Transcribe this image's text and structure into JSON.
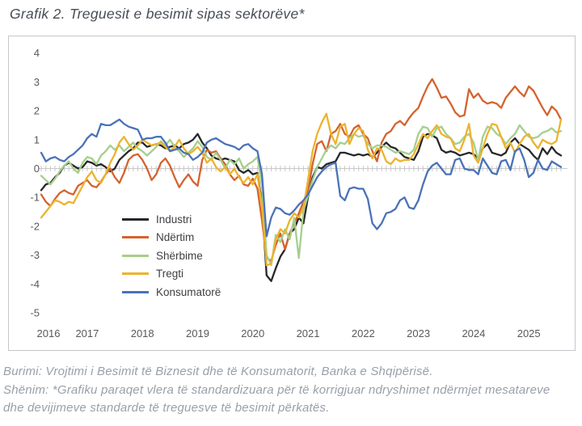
{
  "title": "Grafik 2. Treguesit e besimit sipas sektorëve*",
  "footer": {
    "source": "Burimi: Vrojtimi i Besimit të Biznesit dhe të Konsumatorit, Banka e Shqipërisë.",
    "note_line1": "Shënim: *Grafiku paraqet vlera të standardizuara për të korrigjuar ndryshimet ndërmjet mesatareve",
    "note_line2": "dhe devijimeve standarde të treguesve të besimit përkatës."
  },
  "chart_data": {
    "type": "line",
    "title": "Grafik 2. Treguesit e besimit sipas sektorëve*",
    "x_start": "2016-03",
    "frequency": "monthly",
    "x_tick_labels": [
      "2016",
      "2017",
      "2018",
      "2019",
      "2020",
      "2021",
      "2022",
      "2023",
      "2024",
      "2025"
    ],
    "y_ticks": [
      4,
      3,
      2,
      1,
      0,
      -1,
      -2,
      -3,
      -4,
      -5
    ],
    "ylim": [
      -5,
      4
    ],
    "grid": "none",
    "zero_axis": "horizontal line at 0 with monthly tick marks",
    "legend_position": "inside-lower-left",
    "axis_label_color": "#595959",
    "zero_line_color": "#c8c8c8",
    "series": [
      {
        "name": "Industri",
        "color": "#26272b",
        "values": [
          -0.75,
          -0.55,
          -0.5,
          -0.3,
          -0.15,
          0.1,
          0.2,
          0.1,
          0,
          0.05,
          0.25,
          0.2,
          0.1,
          0.15,
          0.05,
          -0.1,
          0,
          0.3,
          0.45,
          0.6,
          0.7,
          0.9,
          0.9,
          0.75,
          0.8,
          0.85,
          0.8,
          0.7,
          0.75,
          0.8,
          0.7,
          0.85,
          0.9,
          1.0,
          1.2,
          0.9,
          0.7,
          0.45,
          0.35,
          0.3,
          0.35,
          0.3,
          0.25,
          -0.05,
          -0.15,
          -0.05,
          -0.2,
          -0.15,
          -1.2,
          -3.7,
          -3.9,
          -3.45,
          -3.05,
          -2.8,
          -2.25,
          -2.1,
          -1.7,
          -1.9,
          -1.0,
          -0.3,
          0.05,
          0,
          0.15,
          0.2,
          0.25,
          0.55,
          0.55,
          0.5,
          0.45,
          0.5,
          0.45,
          0.5,
          0.4,
          0.55,
          0.75,
          0.9,
          0.75,
          0.7,
          0.55,
          0.4,
          0.35,
          0.3,
          0.6,
          1.1,
          1.2,
          1.15,
          1.05,
          0.65,
          0.55,
          0.6,
          0.55,
          0.45,
          0.5,
          0.55,
          0.5,
          0.35,
          0.7,
          0.85,
          0.55,
          0.5,
          0.45,
          0.55,
          0.9,
          1.05,
          0.85,
          0.75,
          0.65,
          0.45,
          0.3,
          0.7,
          0.5,
          0.75,
          0.55,
          0.45
        ]
      },
      {
        "name": "Ndërtim",
        "color": "#d4632f",
        "values": [
          -0.9,
          -1.15,
          -1.3,
          -1.05,
          -0.85,
          -0.75,
          -0.85,
          -0.9,
          -0.6,
          -0.5,
          -0.4,
          -0.6,
          -0.65,
          -0.45,
          -0.2,
          0,
          -0.3,
          -0.5,
          -0.15,
          0.3,
          0.45,
          0.5,
          0.3,
          0,
          -0.4,
          -0.2,
          0.2,
          0.35,
          0.1,
          -0.3,
          -0.65,
          -0.4,
          -0.2,
          -0.45,
          -0.6,
          0.3,
          0.65,
          0.55,
          0.6,
          0.35,
          0.15,
          -0.2,
          -0.4,
          -0.25,
          -0.55,
          -0.6,
          -0.35,
          -0.7,
          -1.8,
          -3.1,
          -3.2,
          -2.65,
          -2.25,
          -2.8,
          -2.25,
          -1.9,
          -1.55,
          -1.15,
          -0.8,
          0.15,
          0.85,
          0.95,
          0.6,
          1.2,
          1.3,
          1.55,
          1.2,
          1.1,
          1.4,
          1.5,
          1.2,
          1.05,
          0.6,
          0.25,
          0.9,
          1.2,
          1.3,
          1.55,
          1.65,
          1.5,
          1.75,
          1.95,
          2.1,
          2.5,
          2.85,
          3.1,
          2.8,
          2.45,
          2.5,
          2.25,
          1.95,
          1.8,
          1.85,
          2.75,
          2.45,
          2.6,
          2.35,
          2.25,
          2.3,
          2.25,
          2.1,
          2.45,
          2.65,
          2.85,
          2.65,
          2.5,
          2.85,
          2.7,
          2.4,
          2.1,
          1.85,
          2.15,
          2.0,
          1.7
        ]
      },
      {
        "name": "Shërbime",
        "color": "#a5cf8c",
        "values": [
          -0.25,
          -0.4,
          -0.55,
          -0.35,
          -0.1,
          0.1,
          0.25,
          0,
          -0.15,
          0.2,
          0.4,
          0.35,
          0.15,
          0.45,
          0.6,
          0.8,
          0.65,
          0.8,
          0.6,
          0.75,
          0.9,
          0.7,
          0.6,
          0.45,
          0.6,
          0.75,
          0.95,
          0.8,
          1.0,
          0.75,
          0.6,
          0.4,
          0.55,
          0.7,
          0.95,
          0.75,
          0.4,
          0.3,
          0.55,
          0.3,
          0,
          0.3,
          0.15,
          0.35,
          0,
          0.15,
          0.25,
          0.4,
          -0.6,
          -3.0,
          -3.35,
          -2.3,
          -2.55,
          -2.1,
          -2.45,
          -1.7,
          -3.1,
          -1.45,
          -0.95,
          -0.4,
          0.05,
          0.35,
          0.65,
          0.8,
          0.7,
          0.9,
          0.85,
          1.05,
          1.2,
          1.1,
          1.15,
          0.85,
          0.7,
          0.8,
          0.8,
          0.75,
          0.65,
          0.55,
          0.6,
          0.55,
          0.5,
          0.65,
          1.2,
          1.45,
          1.4,
          1.1,
          1.4,
          1.45,
          1.2,
          1.05,
          0.85,
          0.9,
          1.1,
          1.2,
          0.9,
          0.3,
          1.1,
          1.45,
          1.4,
          1.2,
          1.1,
          0.85,
          1.05,
          1.2,
          1.5,
          1.3,
          1.1,
          1.05,
          1.1,
          1.25,
          1.3,
          1.4,
          1.25,
          1.3
        ]
      },
      {
        "name": "Tregti",
        "color": "#edb32d",
        "values": [
          -1.7,
          -1.5,
          -1.3,
          -1.1,
          -1.15,
          -1.25,
          -1.15,
          -1.2,
          -0.9,
          -0.6,
          -0.3,
          -0.1,
          -0.4,
          -0.5,
          -0.2,
          0.2,
          0.5,
          0.9,
          1.1,
          0.85,
          0.65,
          0.8,
          1.0,
          0.9,
          0.8,
          0.85,
          0.9,
          0.75,
          0.6,
          0.75,
          1.0,
          0.7,
          0.5,
          0.6,
          0.75,
          0.55,
          0.2,
          0.35,
          0.05,
          -0.1,
          0.05,
          -0.2,
          0,
          -0.3,
          -0.5,
          -0.3,
          -0.55,
          -0.2,
          -1.3,
          -3.35,
          -3.3,
          -2.45,
          -2.1,
          -2.25,
          -1.8,
          -1.55,
          -1.7,
          -1.35,
          -0.4,
          0.6,
          1.2,
          1.6,
          1.9,
          1.2,
          0.85,
          1.45,
          1.55,
          0.85,
          1.2,
          1.4,
          1.3,
          0.65,
          0.35,
          0.7,
          0.65,
          0.25,
          0.15,
          0.35,
          0.25,
          0.3,
          0.3,
          0.5,
          0.85,
          1.2,
          1.05,
          1.3,
          1.5,
          1.2,
          1.1,
          1.05,
          0.7,
          0.6,
          1.0,
          1.55,
          0.45,
          0.2,
          0.7,
          1.2,
          1.55,
          1.5,
          1.1,
          0.7,
          0.9,
          0.55,
          0.85,
          1.1,
          1.2,
          0.9,
          0.7,
          1.0,
          0.9,
          0.85,
          0.95,
          1.7
        ]
      },
      {
        "name": "Konsumatorë",
        "color": "#4a72b8",
        "values": [
          0.55,
          0.25,
          0.35,
          0.4,
          0.3,
          0.25,
          0.4,
          0.5,
          0.65,
          0.8,
          1.05,
          1.2,
          1.1,
          1.55,
          1.5,
          1.5,
          1.6,
          1.7,
          1.55,
          1.45,
          1.4,
          1.35,
          1.0,
          1.05,
          1.05,
          1.1,
          1.1,
          0.9,
          0.6,
          0.65,
          0.7,
          0.55,
          0.5,
          0.3,
          0.4,
          0.55,
          0.9,
          1.0,
          1.05,
          0.95,
          0.85,
          0.8,
          0.75,
          0.65,
          0.8,
          0.85,
          0.7,
          0.6,
          -0.2,
          -2.35,
          -1.7,
          -1.35,
          -1.4,
          -1.55,
          -1.6,
          -1.45,
          -1.25,
          -1.1,
          -0.9,
          -0.6,
          -0.3,
          -0.1,
          0.05,
          0.15,
          0.2,
          -0.95,
          -1.1,
          -0.7,
          -0.65,
          -0.7,
          -0.7,
          -1.05,
          -1.9,
          -2.1,
          -1.9,
          -1.55,
          -1.5,
          -1.4,
          -1.1,
          -1.0,
          -1.35,
          -1.4,
          -1.1,
          -0.55,
          -0.1,
          0.1,
          0.2,
          0,
          -0.2,
          -0.2,
          0.3,
          0.35,
          0,
          -0.05,
          -0.05,
          -0.2,
          0.35,
          0.1,
          -0.15,
          -0.2,
          0.25,
          0.3,
          -0.05,
          0.6,
          0.7,
          0.3,
          -0.3,
          -0.15,
          0.3,
          0,
          -0.05,
          0.25,
          0.15,
          0.05
        ]
      }
    ]
  }
}
